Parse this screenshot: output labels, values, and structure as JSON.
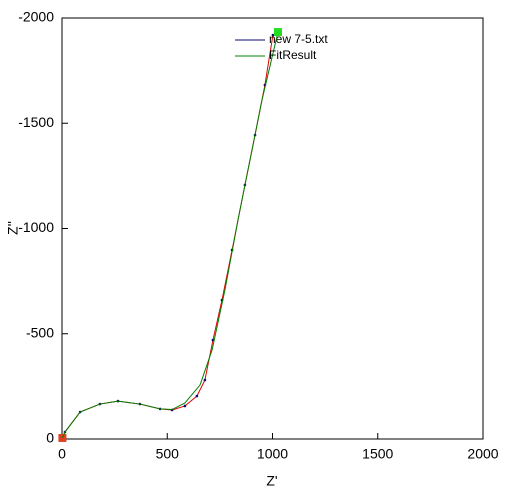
{
  "chart_data": {
    "type": "line",
    "x_label": "Z'",
    "y_label": "Z''",
    "xlim": [
      0,
      2000
    ],
    "xticks": [
      0,
      500,
      1000,
      1500,
      2000
    ],
    "ylim": [
      0,
      -2000
    ],
    "yticks": [
      0,
      -500,
      -1000,
      -1500,
      -2000
    ],
    "legend": "top",
    "series": [
      {
        "name": "new 7-5.txt",
        "color": "#0a0a70",
        "line_color": "#e00000",
        "start_marker_color": "#e04020",
        "x": [
          2,
          14,
          86,
          180,
          266,
          370,
          466,
          523,
          584,
          641,
          679,
          717,
          760,
          808,
          869,
          917,
          964,
          1002
        ],
        "y": [
          -5,
          -33,
          -128,
          -166,
          -180,
          -166,
          -143,
          -138,
          -157,
          -204,
          -280,
          -470,
          -660,
          -898,
          -1207,
          -1444,
          -1682,
          -1919
        ]
      },
      {
        "name": "FitResult",
        "color": "#008000",
        "end_marker_color": "#22dd22",
        "x": [
          2,
          14,
          86,
          180,
          266,
          370,
          466,
          523,
          584,
          656,
          713,
          774,
          836,
          893,
          950,
          1026
        ],
        "y": [
          -5,
          -33,
          -128,
          -166,
          -180,
          -166,
          -143,
          -140,
          -171,
          -257,
          -423,
          -708,
          -1040,
          -1325,
          -1610,
          -1933
        ]
      }
    ]
  }
}
